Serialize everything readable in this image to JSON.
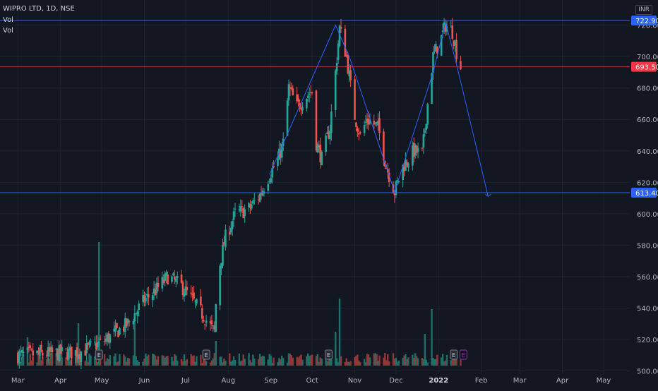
{
  "header": {
    "symbol": "WIPRO LTD, 1D, NSE",
    "vol_label_1": "Vol",
    "vol_label_2": "Vol",
    "currency": "INR"
  },
  "colors": {
    "background": "#131722",
    "grid": "#1f2330",
    "up": "#26a69a",
    "down": "#ef5350",
    "up_volume": "#1e6f68",
    "down_volume": "#8f3837",
    "line": "#2962ff",
    "axis_text": "#b2b5be",
    "current_price": "#f23645",
    "marker": "#9c27b0"
  },
  "chart_data": {
    "type": "candlestick",
    "title": "WIPRO LTD, 1D, NSE",
    "ylim": [
      498,
      736
    ],
    "y_ticks": [
      500,
      520,
      540,
      560,
      580,
      600,
      620,
      640,
      660,
      680,
      700,
      720
    ],
    "x_ticks": [
      {
        "label": "Mar",
        "date": "2021-03-01"
      },
      {
        "label": "Apr",
        "date": "2021-04-01"
      },
      {
        "label": "May",
        "date": "2021-05-01"
      },
      {
        "label": "Jun",
        "date": "2021-06-01"
      },
      {
        "label": "Jul",
        "date": "2021-07-01"
      },
      {
        "label": "Aug",
        "date": "2021-08-01"
      },
      {
        "label": "Sep",
        "date": "2021-09-01"
      },
      {
        "label": "Oct",
        "date": "2021-10-01"
      },
      {
        "label": "Nov",
        "date": "2021-11-01"
      },
      {
        "label": "Dec",
        "date": "2021-12-01"
      },
      {
        "label": "2022",
        "date": "2022-01-01"
      },
      {
        "label": "Feb",
        "date": "2022-02-01"
      },
      {
        "label": "Mar",
        "date": "2022-03-01"
      },
      {
        "label": "Apr",
        "date": "2022-04-01"
      },
      {
        "label": "May",
        "date": "2022-05-01"
      }
    ],
    "x_range": [
      "2021-02-16",
      "2022-05-20"
    ],
    "price_path": [
      [
        "2021-03-01",
        510
      ],
      [
        "2021-04-15",
        512
      ],
      [
        "2021-05-01",
        518
      ],
      [
        "2021-05-20",
        530
      ],
      [
        "2021-06-01",
        545
      ],
      [
        "2021-06-10",
        552
      ],
      [
        "2021-06-18",
        560
      ],
      [
        "2021-06-28",
        554
      ],
      [
        "2021-07-06",
        545
      ],
      [
        "2021-07-14",
        535
      ],
      [
        "2021-07-20",
        527
      ],
      [
        "2021-07-22",
        525
      ],
      [
        "2021-07-24",
        560
      ],
      [
        "2021-07-30",
        585
      ],
      [
        "2021-08-06",
        600
      ],
      [
        "2021-08-16",
        603
      ],
      [
        "2021-08-24",
        612
      ],
      [
        "2021-08-31",
        625
      ],
      [
        "2021-09-06",
        634
      ],
      [
        "2021-09-10",
        645
      ],
      [
        "2021-09-14",
        680
      ],
      [
        "2021-09-20",
        668
      ],
      [
        "2021-09-27",
        675
      ],
      [
        "2021-10-01",
        678
      ],
      [
        "2021-10-04",
        645
      ],
      [
        "2021-10-08",
        635
      ],
      [
        "2021-10-14",
        655
      ],
      [
        "2021-10-18",
        690
      ],
      [
        "2021-10-21",
        718
      ],
      [
        "2021-10-26",
        700
      ],
      [
        "2021-11-01",
        662
      ],
      [
        "2021-11-05",
        650
      ],
      [
        "2021-11-10",
        660
      ],
      [
        "2021-11-18",
        655
      ],
      [
        "2021-11-24",
        630
      ],
      [
        "2021-11-30",
        614
      ],
      [
        "2021-12-06",
        630
      ],
      [
        "2021-12-14",
        640
      ],
      [
        "2021-12-20",
        638
      ],
      [
        "2021-12-24",
        670
      ],
      [
        "2021-12-28",
        700
      ],
      [
        "2022-01-03",
        712
      ],
      [
        "2022-01-06",
        720
      ],
      [
        "2022-01-11",
        716
      ],
      [
        "2022-01-14",
        703
      ],
      [
        "2022-01-17",
        693.5
      ]
    ],
    "volume_spikes": [
      {
        "date": "2021-03-08",
        "value": 40
      },
      {
        "date": "2021-04-14",
        "value": 60
      },
      {
        "date": "2021-04-29",
        "value": 175
      },
      {
        "date": "2021-05-25",
        "value": 70
      },
      {
        "date": "2021-07-23",
        "value": 35
      },
      {
        "date": "2021-10-18",
        "value": 48
      },
      {
        "date": "2021-10-21",
        "value": 95
      },
      {
        "date": "2021-12-22",
        "value": 45
      },
      {
        "date": "2021-12-27",
        "value": 80
      }
    ],
    "pattern_line": [
      [
        "2021-08-31",
        625
      ],
      [
        "2021-10-18",
        720
      ],
      [
        "2021-10-28",
        700
      ],
      [
        "2021-11-30",
        614
      ],
      [
        "2021-12-28",
        690
      ],
      [
        "2022-01-06",
        722
      ],
      [
        "2022-01-14",
        695
      ],
      [
        "2022-02-06",
        611
      ]
    ],
    "horizontal_levels": [
      {
        "value": 722.9,
        "label": "722.90",
        "kind": "line"
      },
      {
        "value": 613.4,
        "label": "613.40",
        "kind": "line"
      },
      {
        "value": 693.5,
        "label": "693.50",
        "kind": "price"
      }
    ],
    "markers": [
      {
        "date": "2021-04-29",
        "kind": "earnings"
      },
      {
        "date": "2021-07-16",
        "kind": "earnings"
      },
      {
        "date": "2021-10-13",
        "kind": "earnings"
      },
      {
        "date": "2022-01-12",
        "kind": "earnings"
      },
      {
        "date": "2022-01-19",
        "kind": "upcoming"
      }
    ],
    "marker_glyph": "E"
  }
}
